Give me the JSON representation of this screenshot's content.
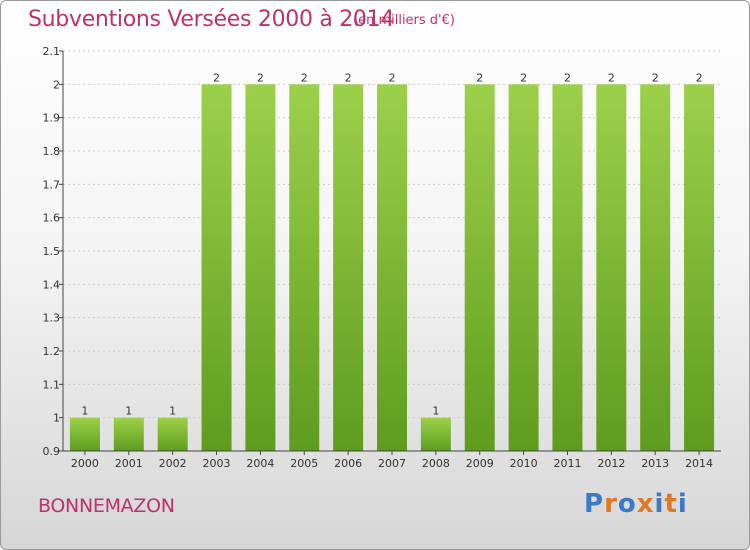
{
  "header": {
    "title": "Subventions Versées 2000 à 2014",
    "unit": "(en milliers d'€)"
  },
  "footer": {
    "commune": "BONNEMAZON",
    "logo_text": "Proxiti",
    "logo_colors": [
      "#3a78c8",
      "#e07820",
      "#3a78c8",
      "#e07820",
      "#3a78c8",
      "#e07820",
      "#3a78c8"
    ]
  },
  "colors": {
    "bar_top": "#9dd04a",
    "bar_bottom": "#5e9c1e",
    "title": "#c0306a",
    "axis": "#444444",
    "grid": "#cccccc"
  },
  "chart_data": {
    "type": "bar",
    "title": "Subventions Versées 2000 à 2014",
    "subtitle": "(en milliers d'€)",
    "categories": [
      "2000",
      "2001",
      "2002",
      "2003",
      "2004",
      "2005",
      "2006",
      "2007",
      "2008",
      "2009",
      "2010",
      "2011",
      "2012",
      "2013",
      "2014"
    ],
    "values": [
      1,
      1,
      1,
      2,
      2,
      2,
      2,
      2,
      1,
      2,
      2,
      2,
      2,
      2,
      2
    ],
    "value_labels": [
      "1",
      "1",
      "1",
      "2",
      "2",
      "2",
      "2",
      "2",
      "1",
      "2",
      "2",
      "2",
      "2",
      "2",
      "2"
    ],
    "ylim": [
      0.9,
      2.1
    ],
    "yticks": [
      0.9,
      1,
      1.1,
      1.2,
      1.3,
      1.4,
      1.5,
      1.6,
      1.7,
      1.8,
      1.9,
      2,
      2.1
    ],
    "ytick_labels": [
      "0.9",
      "1",
      "1.1",
      "1.2",
      "1.3",
      "1.4",
      "1.5",
      "1.6",
      "1.7",
      "1.8",
      "1.9",
      "2",
      "2.1"
    ],
    "grid": true,
    "xlabel": "",
    "ylabel": ""
  }
}
